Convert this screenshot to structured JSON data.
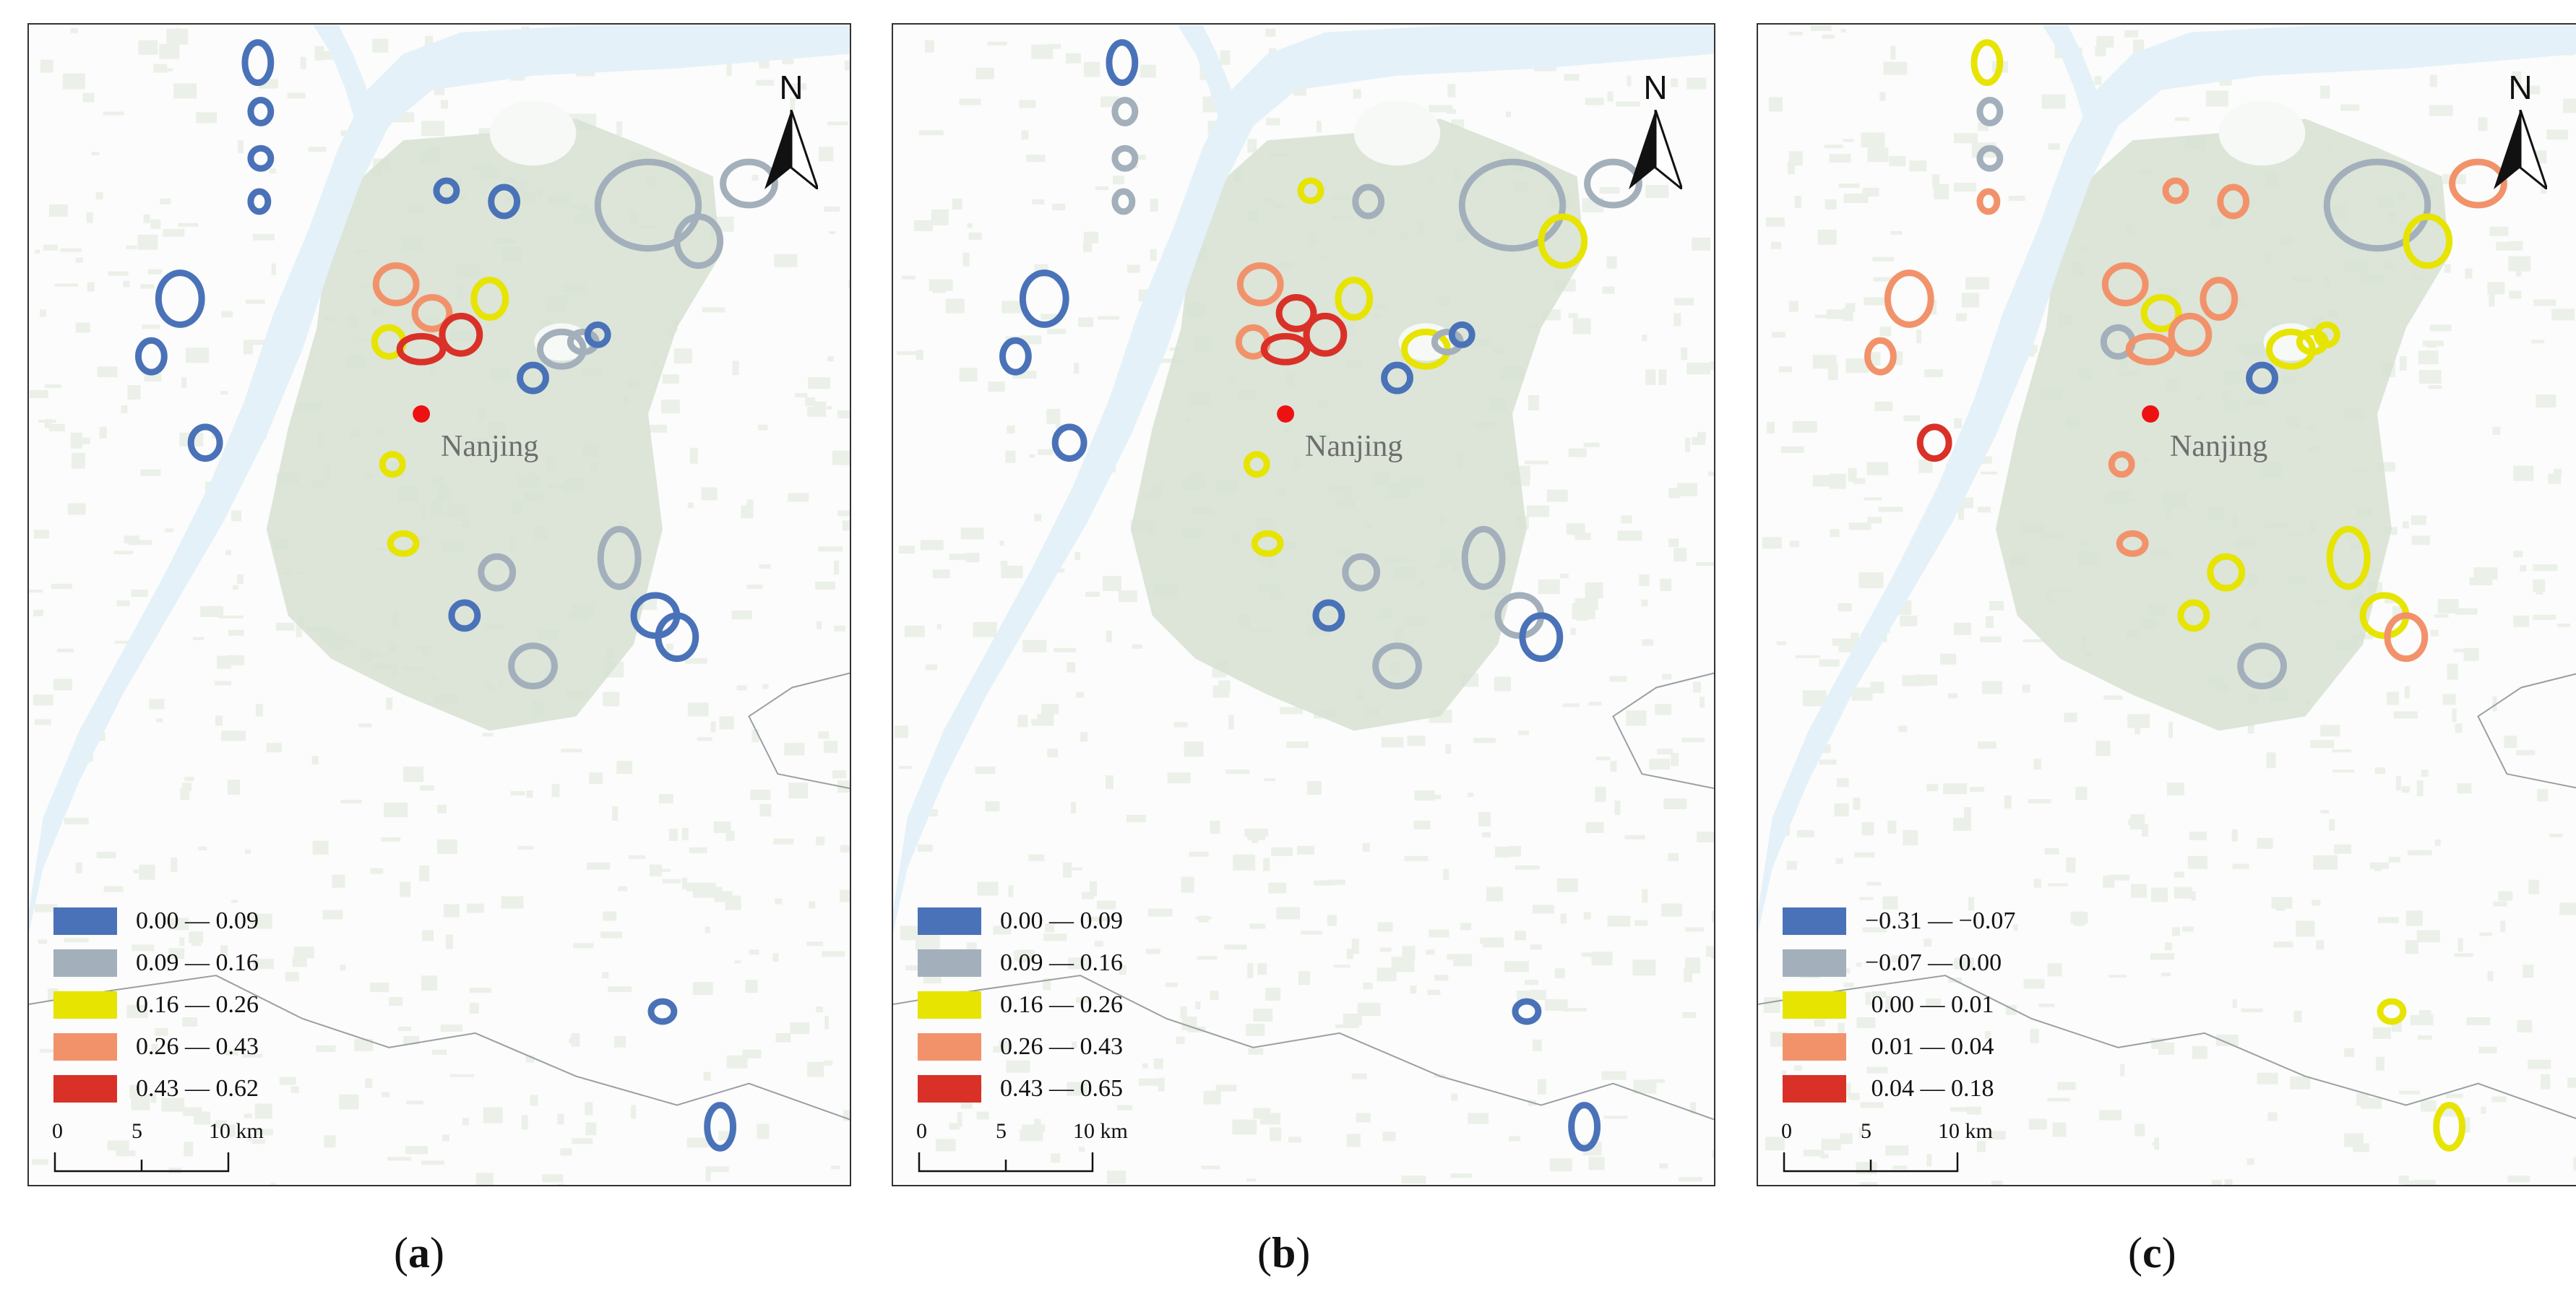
{
  "city_label": "Nanjing",
  "north_label": "N",
  "scale": {
    "labels": [
      "0",
      "5",
      "10 km"
    ]
  },
  "colors": {
    "class1": "#4a72b8",
    "class2": "#a3afbb",
    "class3": "#e6e400",
    "class4": "#f2926b",
    "class5": "#d93128",
    "river": "#e4f1f8",
    "urban": "#d8e2d4",
    "city_dot": "#ee1111"
  },
  "panels": [
    {
      "caption_letter": "a",
      "legend": [
        {
          "label": "0.00 — 0.09",
          "color": "#4a72b8"
        },
        {
          "label": "0.09 — 0.16",
          "color": "#a3afbb"
        },
        {
          "label": "0.16 — 0.26",
          "color": "#e6e400"
        },
        {
          "label": "0.26 — 0.43",
          "color": "#f2926b"
        },
        {
          "label": "0.43 — 0.62",
          "color": "#d93128"
        }
      ]
    },
    {
      "caption_letter": "b",
      "legend": [
        {
          "label": "0.00 — 0.09",
          "color": "#4a72b8"
        },
        {
          "label": "0.09 — 0.16",
          "color": "#a3afbb"
        },
        {
          "label": "0.16 — 0.26",
          "color": "#e6e400"
        },
        {
          "label": "0.26 — 0.43",
          "color": "#f2926b"
        },
        {
          "label": "0.43 — 0.65",
          "color": "#d93128"
        }
      ]
    },
    {
      "caption_letter": "c",
      "legend": [
        {
          "label": "−0.31 — −0.07",
          "color": "#4a72b8"
        },
        {
          "label": "−0.07 — 0.00",
          "color": "#a3afbb"
        },
        {
          "label": " 0.00 — 0.01",
          "color": "#e6e400"
        },
        {
          "label": " 0.01 — 0.04",
          "color": "#f2926b"
        },
        {
          "label": " 0.04 — 0.18",
          "color": "#d93128"
        }
      ]
    }
  ]
}
